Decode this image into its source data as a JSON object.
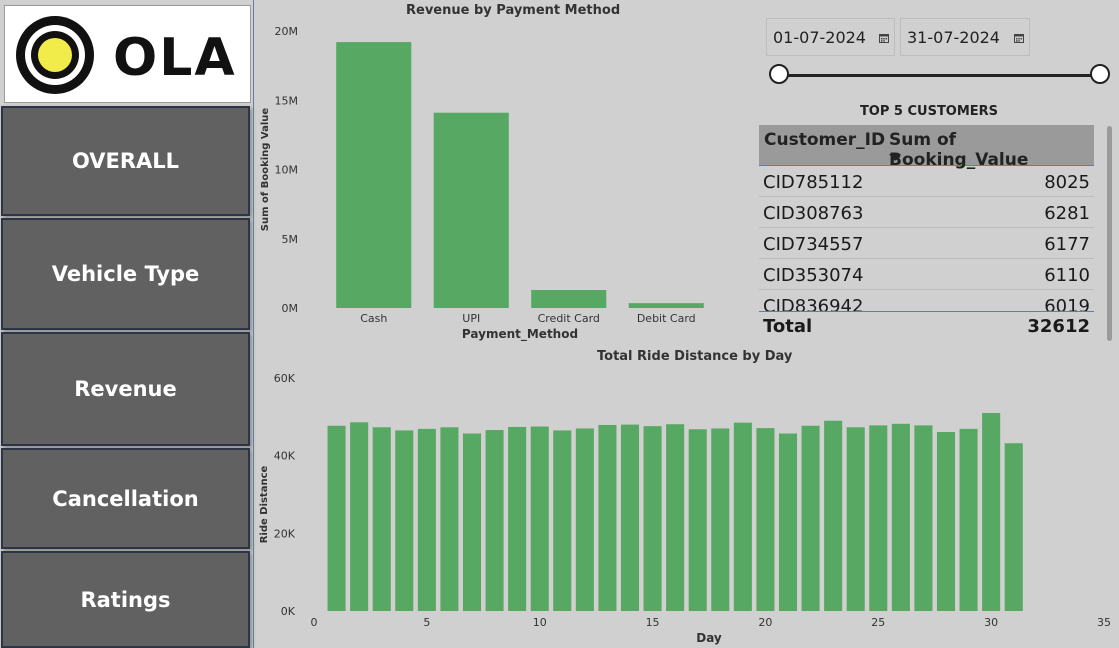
{
  "logo": {
    "brand_text": "OLA"
  },
  "nav": {
    "overall": "OVERALL",
    "vehicle_type": "Vehicle Type",
    "revenue": "Revenue",
    "cancellation": "Cancellation",
    "ratings": "Ratings"
  },
  "date_filter": {
    "start": "01-07-2024",
    "end": "31-07-2024",
    "range_fraction": [
      0.0,
      1.0
    ]
  },
  "top_customers": {
    "title": "TOP 5 CUSTOMERS",
    "columns": [
      "Customer_ID",
      "Sum of Booking_Value"
    ],
    "rows": [
      {
        "id": "CID785112",
        "value": "8025"
      },
      {
        "id": "CID308763",
        "value": "6281"
      },
      {
        "id": "CID734557",
        "value": "6177"
      },
      {
        "id": "CID353074",
        "value": "6110"
      },
      {
        "id": "CID836942",
        "value": "6019"
      }
    ],
    "total_label": "Total",
    "total_value": "32612"
  },
  "colors": {
    "bar": "#57a862",
    "nav_bg": "#616161",
    "bg": "#d0d0d0"
  },
  "chart_data": [
    {
      "type": "bar",
      "title": "Revenue by Payment Method",
      "xlabel": "Payment_Method",
      "ylabel": "Sum of Booking Value",
      "categories": [
        "Cash",
        "UPI",
        "Credit Card",
        "Debit Card"
      ],
      "values": [
        19200000,
        14100000,
        1300000,
        350000
      ],
      "ylim": [
        0,
        20000000
      ],
      "yticks": [
        0,
        5000000,
        10000000,
        15000000,
        20000000
      ],
      "ytick_labels": [
        "0M",
        "5M",
        "10M",
        "15M",
        "20M"
      ],
      "grid": false
    },
    {
      "type": "bar",
      "title": "Total Ride Distance by Day",
      "xlabel": "Day",
      "ylabel": "Ride Distance",
      "x": [
        1,
        2,
        3,
        4,
        5,
        6,
        7,
        8,
        9,
        10,
        11,
        12,
        13,
        14,
        15,
        16,
        17,
        18,
        19,
        20,
        21,
        22,
        23,
        24,
        25,
        26,
        27,
        28,
        29,
        30,
        31
      ],
      "values": [
        47700,
        48600,
        47300,
        46500,
        46900,
        47300,
        45700,
        46600,
        47400,
        47500,
        46500,
        47000,
        47900,
        48000,
        47600,
        48100,
        46800,
        47000,
        48500,
        47100,
        45700,
        47700,
        49000,
        47300,
        47800,
        48200,
        47800,
        46100,
        46900,
        51000,
        43200
      ],
      "xlim": [
        0,
        35
      ],
      "xticks": [
        0,
        5,
        10,
        15,
        20,
        25,
        30,
        35
      ],
      "ylim": [
        0,
        60000
      ],
      "yticks": [
        0,
        20000,
        40000,
        60000
      ],
      "ytick_labels": [
        "0K",
        "20K",
        "40K",
        "60K"
      ],
      "grid": false
    }
  ]
}
